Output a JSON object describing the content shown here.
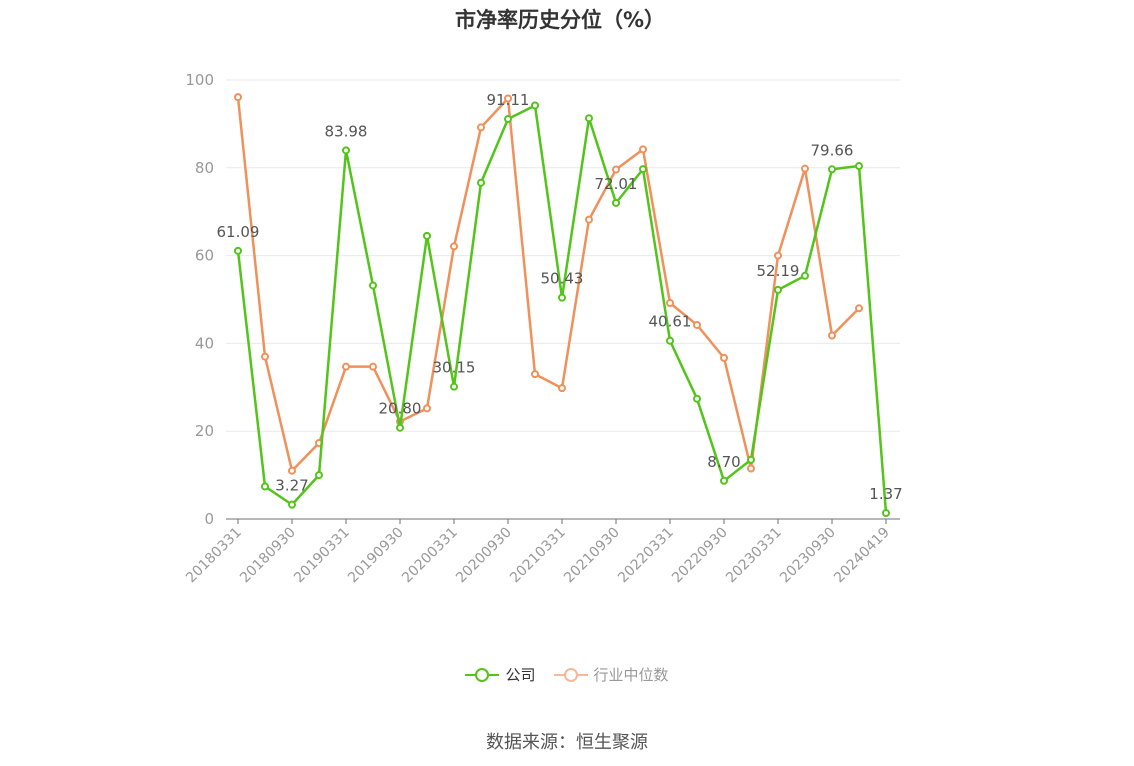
{
  "chart_data": {
    "type": "line",
    "title": "市净率历史分位（%）",
    "ylim": [
      0,
      100
    ],
    "yticks": [
      0,
      20,
      40,
      60,
      80,
      100
    ],
    "x_tick_labels": [
      "20180331",
      "20180930",
      "20190331",
      "20190930",
      "20200331",
      "20200930",
      "20210331",
      "20210930",
      "20220331",
      "20220930",
      "20230331",
      "20230930",
      "20240419"
    ],
    "x": [
      "20180331",
      "20180630",
      "20180930",
      "20181231",
      "20190331",
      "20190630",
      "20190930",
      "20191231",
      "20200331",
      "20200630",
      "20200930",
      "20201231",
      "20210331",
      "20210630",
      "20210930",
      "20211231",
      "20220331",
      "20220630",
      "20220930",
      "20221231",
      "20230331",
      "20230630",
      "20230930",
      "20231231",
      "20240419"
    ],
    "series": [
      {
        "name": "公司",
        "color": "#52c41a",
        "values": [
          61.09,
          7.4,
          3.27,
          10,
          83.98,
          53.2,
          20.8,
          64.5,
          30.15,
          76.6,
          91.11,
          94.2,
          50.43,
          91.3,
          72.01,
          79.7,
          40.61,
          27.4,
          8.7,
          13.5,
          52.19,
          55.4,
          79.66,
          80.4,
          1.37
        ],
        "labeled_points": {
          "0": "61.09",
          "2": "3.27",
          "4": "83.98",
          "6": "20.80",
          "8": "30.15",
          "10": "91.11",
          "12": "50.43",
          "14": "72.01",
          "16": "40.61",
          "18": "8.70",
          "20": "52.19",
          "22": "79.66",
          "24": "1.37"
        }
      },
      {
        "name": "行业中位数",
        "color": "#f0905a",
        "values": [
          96.1,
          37,
          11,
          17.3,
          34.7,
          34.7,
          22.2,
          25.2,
          62.1,
          89.2,
          95.8,
          33,
          29.8,
          68.2,
          79.6,
          84.2,
          49.2,
          44.2,
          36.7,
          11.5,
          60,
          79.8,
          41.8,
          48,
          null
        ]
      }
    ],
    "legend": [
      {
        "label": "公司",
        "color": "#52c41a",
        "faded": false
      },
      {
        "label": "行业中位数",
        "color": "#f7b89a",
        "faded": true
      }
    ],
    "legend_position": "bottom-center",
    "grid": true,
    "source": "数据来源：恒生聚源"
  }
}
